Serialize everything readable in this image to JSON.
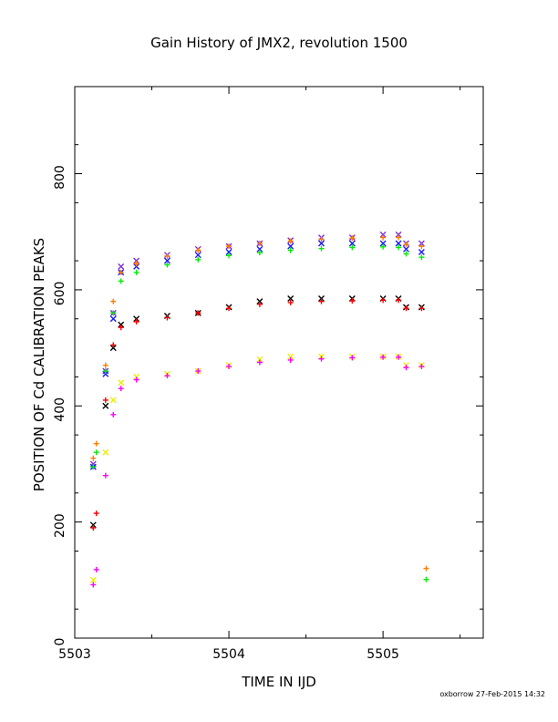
{
  "chart_data": {
    "type": "scatter",
    "title": "Gain History of JMX2, revolution 1500",
    "xlabel": "TIME IN IJD",
    "ylabel": "POSITION OF Cd CALIBRATION PEAKS",
    "xlim": [
      5503.0,
      5505.65
    ],
    "ylim": [
      0,
      950
    ],
    "x_ticks": [
      5503,
      5504,
      5505
    ],
    "x_tick_labels": [
      "5503",
      "5504",
      "5505"
    ],
    "y_ticks": [
      0,
      200,
      400,
      600,
      800
    ],
    "y_tick_labels": [
      "0",
      "200",
      "400",
      "600",
      "800"
    ],
    "grid": false,
    "legend": "none",
    "series": [
      {
        "color": "#7b2fe0",
        "marker": "x",
        "x": [
          5503.12,
          5503.2,
          5503.25,
          5503.3,
          5503.4,
          5503.6,
          5503.8,
          5504.0,
          5504.2,
          5504.4,
          5504.6,
          5504.8,
          5505.0,
          5505.1,
          5505.15,
          5505.25
        ],
        "y": [
          300,
          460,
          560,
          640,
          650,
          660,
          670,
          675,
          680,
          685,
          690,
          690,
          695,
          695,
          680,
          680
        ]
      },
      {
        "color": "#1a1aff",
        "marker": "x",
        "x": [
          5503.12,
          5503.2,
          5503.25,
          5503.3,
          5503.4,
          5503.6,
          5503.8,
          5504.0,
          5504.2,
          5504.4,
          5504.6,
          5504.8,
          5505.0,
          5505.1,
          5505.15,
          5505.25
        ],
        "y": [
          295,
          455,
          550,
          630,
          640,
          650,
          660,
          665,
          670,
          675,
          680,
          680,
          680,
          680,
          670,
          665
        ]
      },
      {
        "color": "#ff7f00",
        "marker": "+",
        "x": [
          5503.12,
          5503.14,
          5503.2,
          5503.25,
          5503.3,
          5503.4,
          5503.6,
          5503.8,
          5504.0,
          5504.2,
          5504.4,
          5504.6,
          5504.8,
          5505.0,
          5505.1,
          5505.15,
          5505.25,
          5505.28
        ],
        "y": [
          310,
          335,
          470,
          580,
          630,
          645,
          658,
          668,
          675,
          680,
          684,
          687,
          689,
          690,
          690,
          678,
          675,
          120
        ]
      },
      {
        "color": "#00ee00",
        "marker": "+",
        "x": [
          5503.12,
          5503.14,
          5503.2,
          5503.25,
          5503.3,
          5503.4,
          5503.6,
          5503.8,
          5504.0,
          5504.2,
          5504.4,
          5504.6,
          5504.8,
          5505.0,
          5505.1,
          5505.15,
          5505.25,
          5505.28
        ],
        "y": [
          295,
          320,
          460,
          560,
          615,
          630,
          643,
          652,
          659,
          664,
          668,
          671,
          673,
          674,
          673,
          662,
          656,
          101
        ]
      },
      {
        "color": "#000000",
        "marker": "x",
        "x": [
          5503.12,
          5503.2,
          5503.25,
          5503.3,
          5503.4,
          5503.6,
          5503.8,
          5504.0,
          5504.2,
          5504.4,
          5504.6,
          5504.8,
          5505.0,
          5505.1,
          5505.15,
          5505.25
        ],
        "y": [
          195,
          400,
          500,
          540,
          550,
          555,
          560,
          570,
          580,
          585,
          585,
          585,
          585,
          585,
          570,
          570
        ]
      },
      {
        "color": "#ff0000",
        "marker": "+",
        "x": [
          5503.12,
          5503.14,
          5503.2,
          5503.25,
          5503.3,
          5503.4,
          5503.6,
          5503.8,
          5504.0,
          5504.2,
          5504.4,
          5504.6,
          5504.8,
          5505.0,
          5505.1,
          5505.15,
          5505.25
        ],
        "y": [
          190,
          215,
          410,
          505,
          535,
          545,
          552,
          560,
          568,
          575,
          578,
          580,
          581,
          582,
          582,
          568,
          568
        ]
      },
      {
        "color": "#eeee00",
        "marker": "x",
        "x": [
          5503.12,
          5503.2,
          5503.25,
          5503.3,
          5503.4,
          5503.6,
          5503.8,
          5504.0,
          5504.2,
          5504.4,
          5504.6,
          5504.8,
          5505.0,
          5505.1,
          5505.15,
          5505.25
        ],
        "y": [
          100,
          320,
          410,
          440,
          450,
          455,
          460,
          470,
          480,
          485,
          485,
          485,
          485,
          485,
          470,
          470
        ]
      },
      {
        "color": "#ff00ff",
        "marker": "+",
        "x": [
          5503.12,
          5503.14,
          5503.2,
          5503.25,
          5503.3,
          5503.4,
          5503.6,
          5503.8,
          5504.0,
          5504.2,
          5504.4,
          5504.6,
          5504.8,
          5505.0,
          5505.1,
          5505.15,
          5505.25
        ],
        "y": [
          92,
          118,
          280,
          385,
          430,
          445,
          452,
          460,
          468,
          475,
          479,
          481,
          483,
          484,
          484,
          466,
          468
        ]
      }
    ],
    "annotation": "oxborrow 27-Feb-2015 14:32"
  }
}
